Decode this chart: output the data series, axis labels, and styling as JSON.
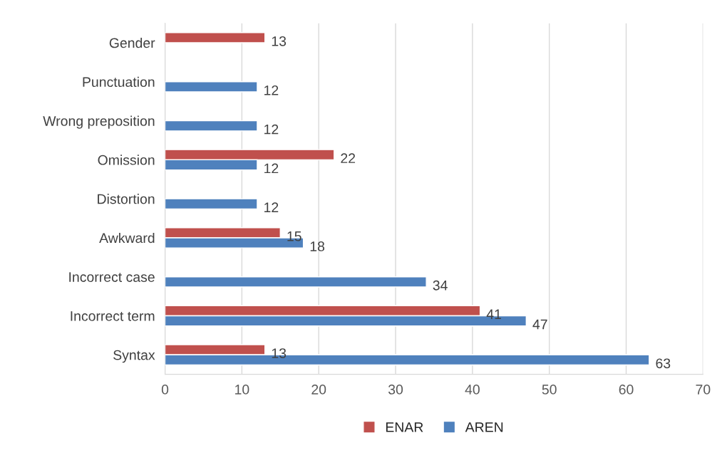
{
  "chart_data": {
    "type": "bar",
    "orientation": "horizontal",
    "categories": [
      "Gender",
      "Punctuation",
      "Wrong preposition",
      "Omission",
      "Distortion",
      "Awkward",
      "Incorrect case",
      "Incorrect term",
      "Syntax"
    ],
    "series": [
      {
        "name": "ENAR",
        "color": "#c0504d",
        "values": [
          13,
          null,
          null,
          22,
          null,
          15,
          null,
          41,
          13
        ]
      },
      {
        "name": "AREN",
        "color": "#4f81bd",
        "values": [
          null,
          12,
          12,
          12,
          12,
          18,
          34,
          47,
          63
        ]
      }
    ],
    "xlim": [
      0,
      70
    ],
    "xticks": [
      0,
      10,
      20,
      30,
      40,
      50,
      60,
      70
    ],
    "grid": "x",
    "legend": "bottom",
    "data_labels": true
  }
}
